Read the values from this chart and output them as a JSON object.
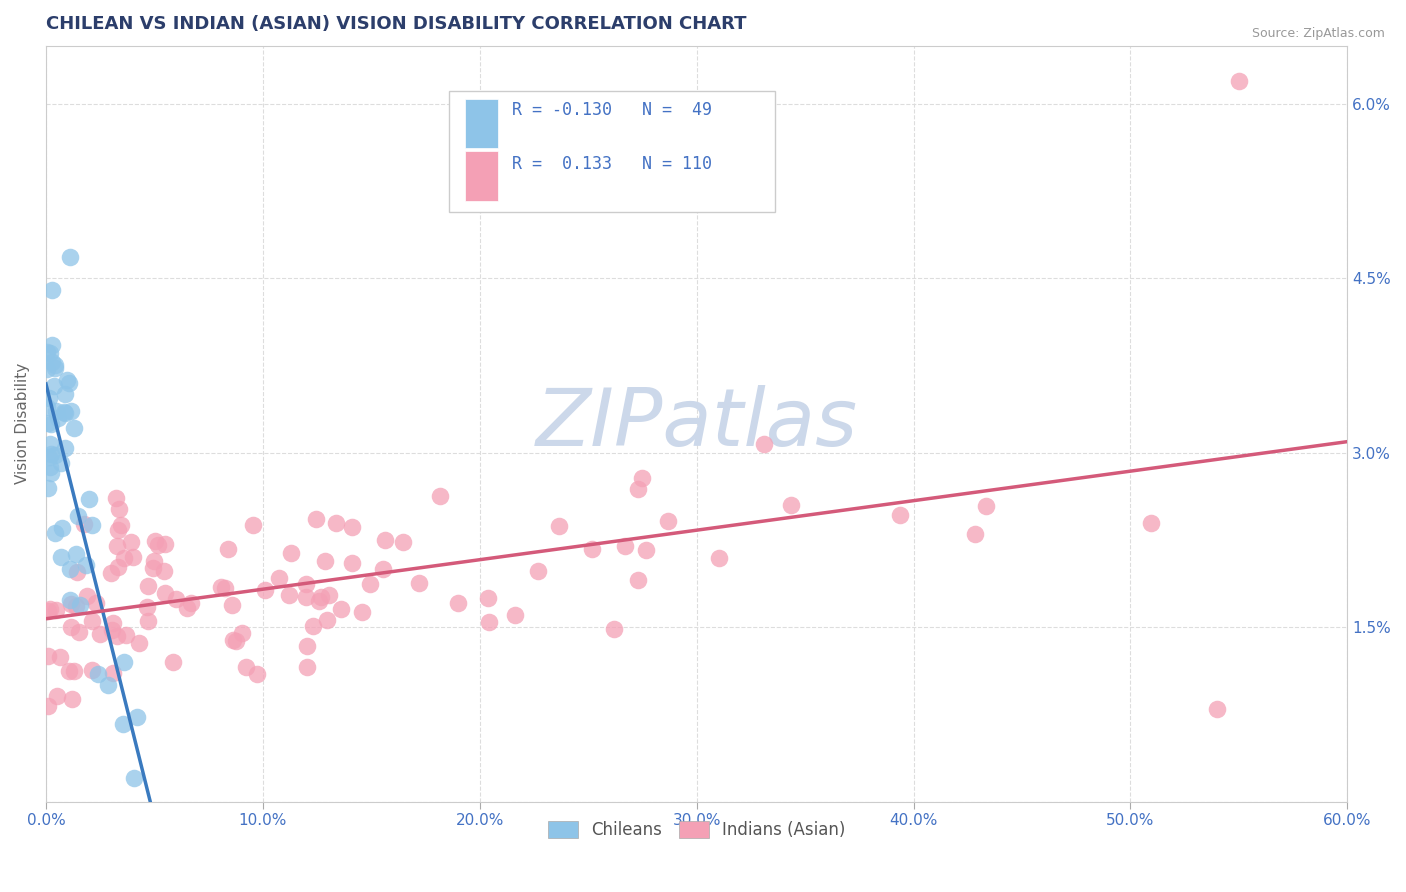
{
  "title": "CHILEAN VS INDIAN (ASIAN) VISION DISABILITY CORRELATION CHART",
  "source": "Source: ZipAtlas.com",
  "ylabel_label": "Vision Disability",
  "legend_labels": [
    "Chileans",
    "Indians (Asian)"
  ],
  "r_chilean": "-0.130",
  "n_chilean": "49",
  "r_indian": "0.133",
  "n_indian": "110",
  "chilean_color": "#8ec4e8",
  "indian_color": "#f4a0b5",
  "chilean_line_color": "#3a7abf",
  "indian_line_color": "#d45a7a",
  "dashed_line_color": "#aac8e0",
  "watermark_color": "#ccd8ea",
  "xmin": 0.0,
  "xmax": 0.6,
  "ymin": 0.0,
  "ymax": 0.065,
  "ytick_vals": [
    0.0,
    0.015,
    0.03,
    0.045,
    0.06
  ],
  "ytick_labels": [
    "",
    "1.5%",
    "3.0%",
    "4.5%",
    "6.0%"
  ],
  "xtick_vals": [
    0.0,
    0.1,
    0.2,
    0.3,
    0.4,
    0.5,
    0.6
  ],
  "xtick_labels": [
    "0.0%",
    "10.0%",
    "20.0%",
    "30.0%",
    "40.0%",
    "50.0%",
    "60.0%"
  ],
  "grid_color": "#dddddd",
  "title_color": "#2c3e6b",
  "source_color": "#999999",
  "tick_label_color": "#4472c4",
  "ylabel_color": "#666666"
}
